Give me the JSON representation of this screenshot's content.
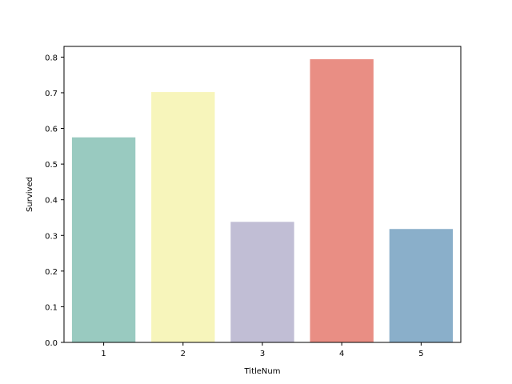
{
  "chart_data": {
    "type": "bar",
    "title": "",
    "xlabel": "TitleNum",
    "ylabel": "Survived",
    "categories": [
      "1",
      "2",
      "3",
      "4",
      "5"
    ],
    "values": [
      0.575,
      0.702,
      0.338,
      0.794,
      0.318
    ],
    "colors": [
      "#99cac0",
      "#f7f5bb",
      "#c1bed5",
      "#e98e84",
      "#8aafca"
    ],
    "ylim": [
      0,
      0.83
    ],
    "yticks": [
      0.0,
      0.1,
      0.2,
      0.3,
      0.4,
      0.5,
      0.6,
      0.7,
      0.8
    ],
    "ytick_labels": [
      "0.0",
      "0.1",
      "0.2",
      "0.3",
      "0.4",
      "0.5",
      "0.6",
      "0.7",
      "0.8"
    ],
    "grid": false,
    "legend": "none"
  }
}
